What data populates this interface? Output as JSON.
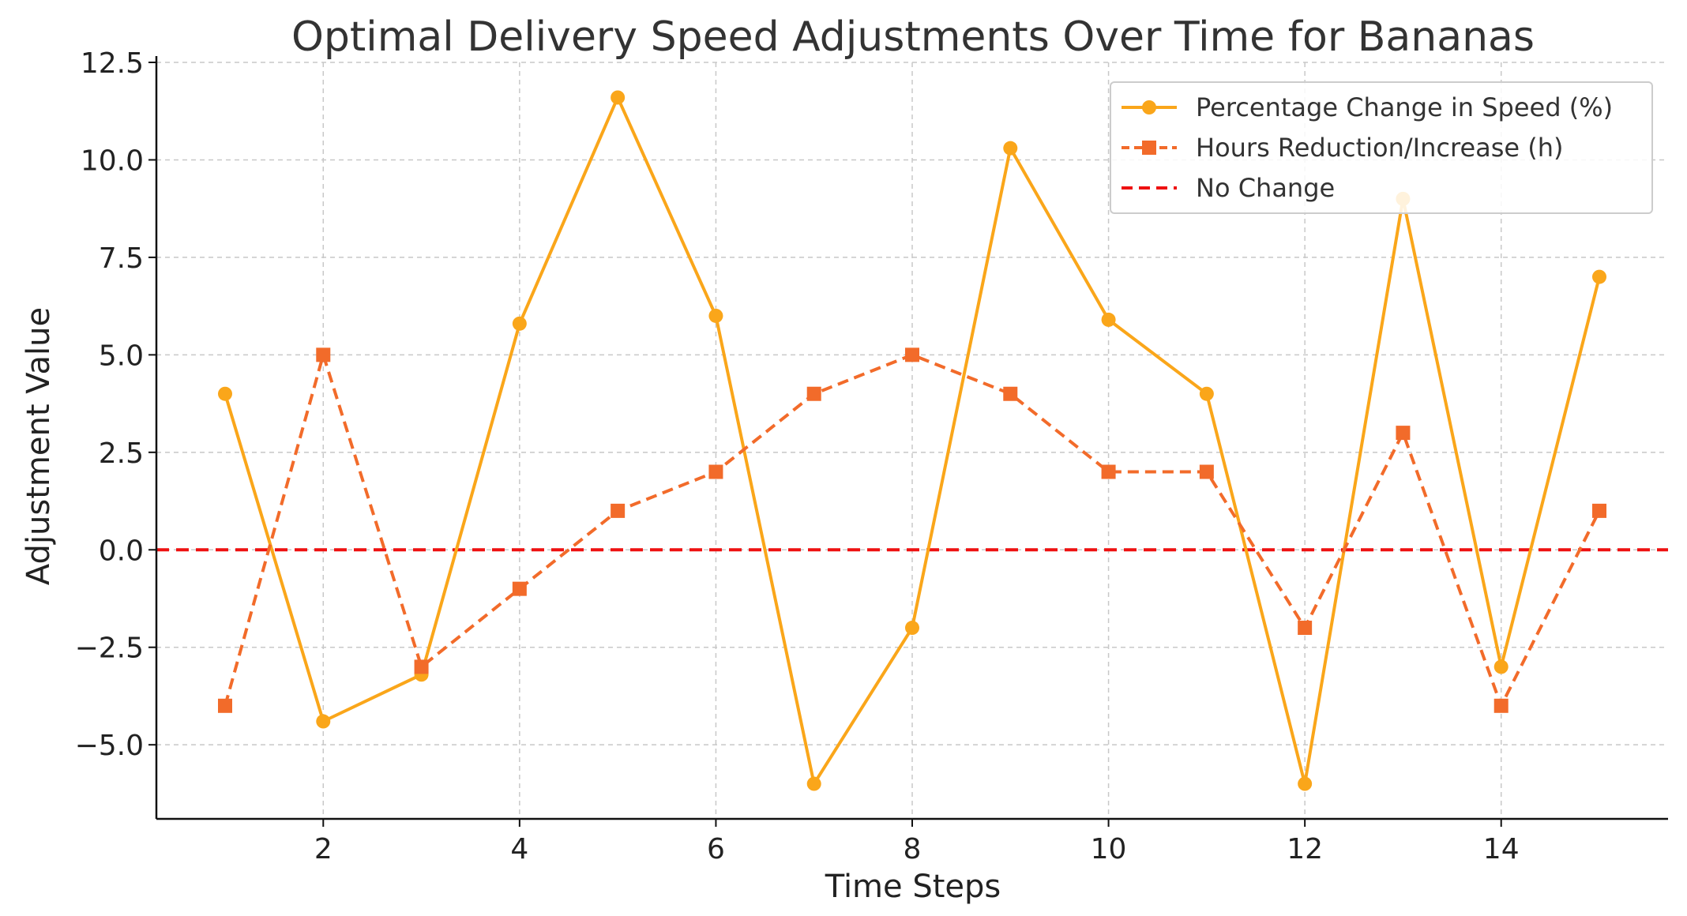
{
  "chart_data": {
    "type": "line",
    "title": "Optimal Delivery Speed Adjustments Over Time for Bananas",
    "xlabel": "Time Steps",
    "ylabel": "Adjustment Value",
    "x": [
      1,
      2,
      3,
      4,
      5,
      6,
      7,
      8,
      9,
      10,
      11,
      12,
      13,
      14,
      15
    ],
    "xlim": [
      0.3,
      15.7
    ],
    "ylim": [
      -6.9,
      12.5
    ],
    "xticks": [
      2,
      4,
      6,
      8,
      10,
      12,
      14
    ],
    "xtick_labels": [
      "2",
      "4",
      "6",
      "8",
      "10",
      "12",
      "14"
    ],
    "yticks": [
      -5.0,
      -2.5,
      0.0,
      2.5,
      5.0,
      7.5,
      10.0,
      12.5
    ],
    "ytick_labels": [
      "−5.0",
      "−2.5",
      "0.0",
      "2.5",
      "5.0",
      "7.5",
      "10.0",
      "12.5"
    ],
    "grid": true,
    "legend_position": "top-right",
    "series": [
      {
        "name": "Percentage Change in Speed (%)",
        "values": [
          4.0,
          -4.4,
          -3.2,
          5.8,
          11.6,
          6.0,
          -6.0,
          -2.0,
          10.3,
          5.9,
          4.0,
          -6.0,
          9.0,
          -3.0,
          7.0
        ],
        "color": "#FAA61A",
        "line_style": "solid",
        "marker": "circle"
      },
      {
        "name": "Hours Reduction/Increase (h)",
        "values": [
          -4,
          5,
          -3,
          -1,
          1,
          2,
          4,
          5,
          4,
          2,
          2,
          -2,
          3,
          -4,
          1
        ],
        "color": "#F26B2A",
        "line_style": "dashed",
        "marker": "square"
      }
    ],
    "reference_lines": [
      {
        "name": "No Change",
        "y": 0,
        "color": "#EE1111",
        "line_style": "dashed"
      }
    ]
  }
}
